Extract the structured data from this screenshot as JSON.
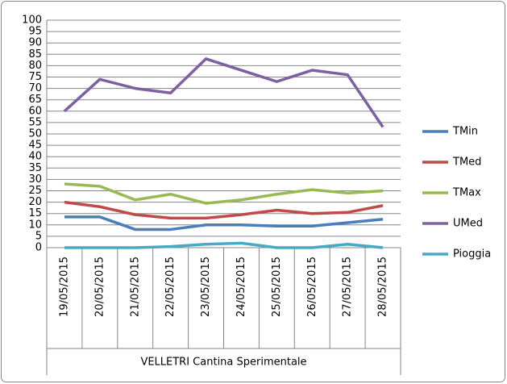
{
  "chart_data": {
    "type": "line",
    "categories": [
      "19/05/2015",
      "20/05/2015",
      "21/05/2015",
      "22/05/2015",
      "23/05/2015",
      "24/05/2015",
      "25/05/2015",
      "26/05/2015",
      "27/05/2015",
      "28/05/2015"
    ],
    "category_group": "VELLETRI Cantina Sperimentale",
    "series": [
      {
        "name": "TMin",
        "color": "#4a7ebb",
        "values": [
          13.5,
          13.5,
          8,
          8,
          10,
          10,
          9.5,
          9.5,
          11,
          12.5
        ]
      },
      {
        "name": "TMed",
        "color": "#be4b48",
        "values": [
          20,
          18,
          14.5,
          13,
          13,
          14.5,
          16.5,
          15,
          15.5,
          18.5
        ]
      },
      {
        "name": "TMax",
        "color": "#98b954",
        "values": [
          28,
          27,
          21,
          23.5,
          19.5,
          21,
          23.5,
          25.5,
          24,
          25
        ]
      },
      {
        "name": "UMed",
        "color": "#7d60a0",
        "values": [
          60,
          74,
          70,
          68,
          83,
          78,
          73,
          78,
          76,
          53
        ]
      },
      {
        "name": "Pioggia",
        "color": "#46aac5",
        "values": [
          0,
          0,
          0,
          0.5,
          1.5,
          2,
          0,
          0,
          1.5,
          0
        ]
      }
    ],
    "ylim": [
      0,
      100
    ],
    "yticks": [
      0,
      5,
      10,
      15,
      20,
      25,
      30,
      35,
      40,
      45,
      50,
      55,
      60,
      65,
      70,
      75,
      80,
      85,
      90,
      95,
      100
    ],
    "grid": true,
    "legend": "right"
  }
}
